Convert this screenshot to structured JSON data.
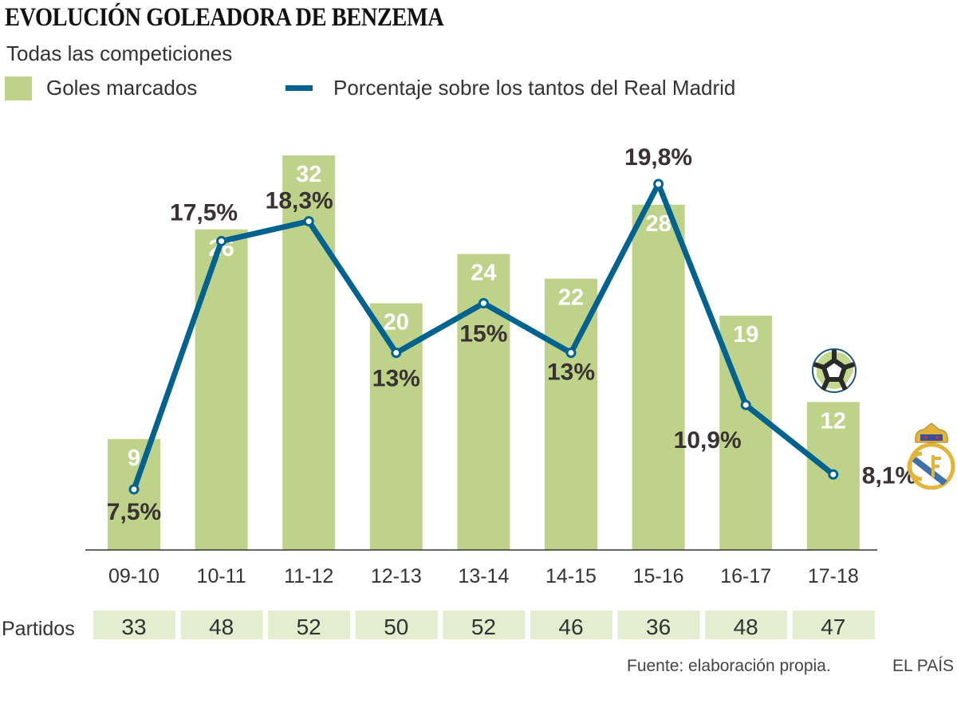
{
  "chart_data": {
    "type": "bar+line",
    "title": "EVOLUCIÓN GOLEADORA DE BENZEMA",
    "subtitle": "Todas las competiciones",
    "categories": [
      "09-10",
      "10-11",
      "11-12",
      "12-13",
      "13-14",
      "14-15",
      "15-16",
      "16-17",
      "17-18"
    ],
    "series": [
      {
        "name": "Goles marcados",
        "type": "bar",
        "color": "#bed28a",
        "values": [
          9,
          26,
          32,
          20,
          24,
          22,
          28,
          19,
          12
        ]
      },
      {
        "name": "Porcentaje sobre los tantos del Real Madrid",
        "type": "line",
        "color": "#00628f",
        "values": [
          7.5,
          17.5,
          18.3,
          13,
          15,
          13,
          19.8,
          10.9,
          8.1
        ],
        "labels": [
          "7,5%",
          "17,5%",
          "18,3%",
          "13%",
          "15%",
          "13%",
          "19,8%",
          "10,9%",
          "8,1%"
        ]
      }
    ],
    "table": {
      "label": "Partidos",
      "values": [
        33,
        48,
        52,
        50,
        52,
        46,
        36,
        48,
        47
      ]
    },
    "legend": "top-left",
    "grid": false
  },
  "source": "Fuente: elaboración propia.",
  "brand": "EL PAÍS",
  "icons": {
    "ball": "soccer-ball-icon",
    "crest": "real-madrid-crest-icon"
  }
}
